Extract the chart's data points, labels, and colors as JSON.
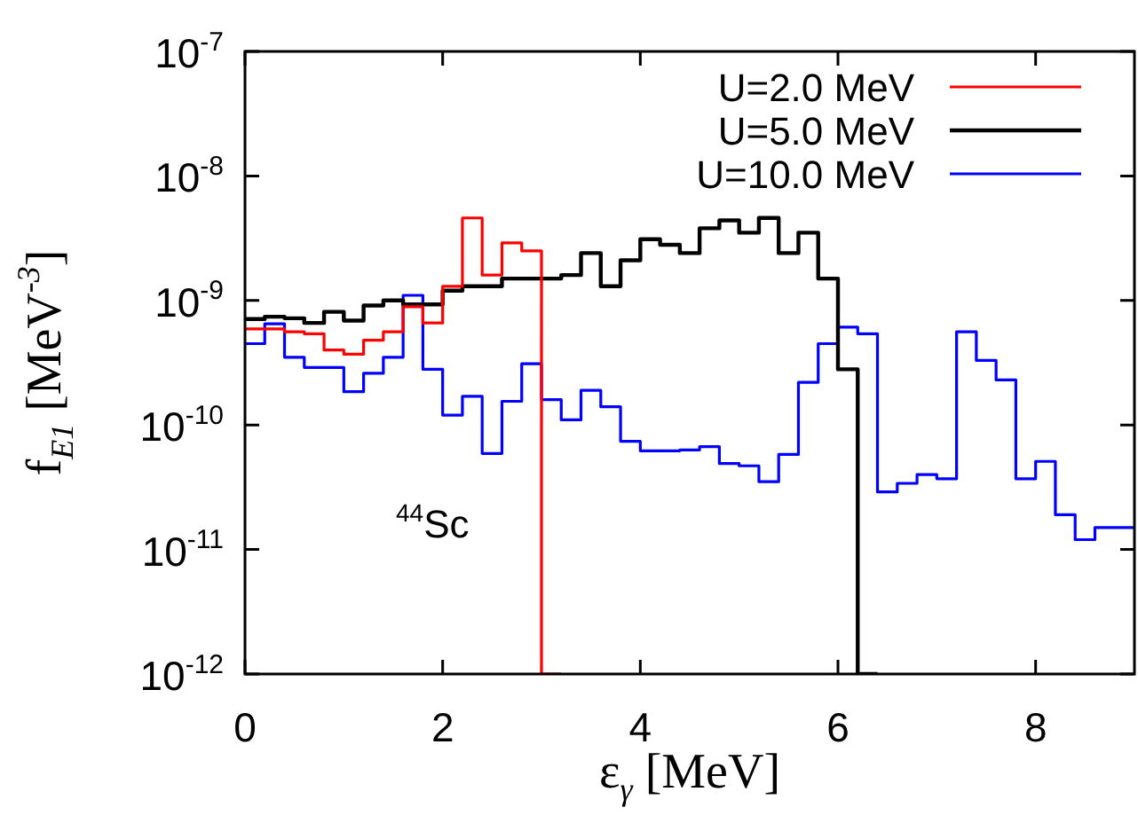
{
  "chart_data": {
    "type": "histogram",
    "xlabel": "ε$_{γ}$ [MeV]",
    "ylabel": "f$_{E1}$ [MeV$^{-3}$]",
    "annotations": [
      "$^{44}$Sc"
    ],
    "bins": [
      0,
      0.2,
      0.4,
      0.6,
      0.8,
      1,
      1.2,
      1.4,
      1.6,
      1.8,
      2,
      2.2,
      2.4,
      2.6,
      2.8,
      3,
      3.2,
      3.4,
      3.6,
      3.8,
      4,
      4.2,
      4.4,
      4.6,
      4.8,
      5,
      5.2,
      5.4,
      5.6,
      5.8,
      6,
      6.2,
      6.4,
      6.6,
      6.8,
      7,
      7.2,
      7.4,
      7.6,
      7.8,
      8,
      8.2,
      8.4,
      8.6,
      8.8,
      9
    ],
    "series": [
      {
        "name": "U=2.0 MeV",
        "color": "#ff0000",
        "bins": [
          0,
          0.2,
          0.4,
          0.6,
          0.8,
          1,
          1.2,
          1.4,
          1.6,
          1.8,
          2,
          2.2,
          2.4,
          2.6,
          2.8,
          3,
          3.2
        ],
        "values": [
          5.9e-10,
          5.9e-10,
          5.6e-10,
          5.4e-10,
          4e-10,
          3.7e-10,
          4.8e-10,
          5.6e-10,
          8.9e-10,
          6.6e-10,
          1.3e-09,
          4.6e-09,
          1.6e-09,
          2.9e-09,
          2.5e-09,
          1e-12
        ]
      },
      {
        "name": "U=5.0 MeV",
        "color": "#000000",
        "bins": [
          0,
          0.2,
          0.4,
          0.6,
          0.8,
          1,
          1.2,
          1.4,
          1.6,
          1.8,
          2,
          2.2,
          2.4,
          2.6,
          2.8,
          3,
          3.2,
          3.4,
          3.6,
          3.8,
          4,
          4.2,
          4.4,
          4.6,
          4.8,
          5,
          5.2,
          5.4,
          5.6,
          5.8,
          6,
          6.2,
          6.4
        ],
        "values": [
          7.1e-10,
          7.4e-10,
          7.2e-10,
          6.6e-10,
          8.1e-10,
          6.9e-10,
          9.1e-10,
          1e-09,
          9.3e-10,
          9.3e-10,
          1.2e-09,
          1.3e-09,
          1.3e-09,
          1.5e-09,
          1.5e-09,
          1.5e-09,
          1.6e-09,
          2.4e-09,
          1.3e-09,
          2.1e-09,
          3.1e-09,
          2.8e-09,
          2.4e-09,
          3.8e-09,
          4.4e-09,
          3.5e-09,
          4.6e-09,
          2.4e-09,
          3.5e-09,
          1.5e-09,
          2.8e-10,
          1e-12
        ]
      },
      {
        "name": "U=10.0 MeV",
        "color": "#0000ff",
        "values": [
          4.5e-10,
          6.5e-10,
          3.5e-10,
          2.9e-10,
          2.9e-10,
          1.85e-10,
          2.6e-10,
          3.5e-10,
          1.1e-09,
          2.8e-10,
          1.2e-10,
          1.7e-10,
          5.9e-11,
          1.55e-10,
          3.1e-10,
          1.6e-10,
          1.1e-10,
          1.9e-10,
          1.4e-10,
          7.4e-11,
          6.2e-11,
          6.2e-11,
          6.3e-11,
          6.7e-11,
          4.9e-11,
          4.7e-11,
          3.5e-11,
          5.8e-11,
          2.2e-10,
          4.5e-10,
          6.1e-10,
          5.4e-10,
          2.9e-11,
          3.4e-11,
          4e-11,
          3.7e-11,
          5.6e-10,
          3.3e-10,
          2.3e-10,
          3.7e-11,
          5.1e-11,
          1.9e-11,
          1.2e-11,
          1.5e-11,
          1.5e-11
        ]
      }
    ],
    "xlim": [
      0,
      9
    ],
    "xticks": [
      0,
      2,
      4,
      6,
      8
    ],
    "ylim": [
      1e-12,
      1e-07
    ],
    "yticks": [
      {
        "value": 1e-12,
        "label": "10$^{-12}$"
      },
      {
        "value": 1e-11,
        "label": "10$^{-11}$"
      },
      {
        "value": 1e-10,
        "label": "10$^{-10}$"
      },
      {
        "value": 1e-09,
        "label": "10$^{-9}$"
      },
      {
        "value": 1e-08,
        "label": "10$^{-8}$"
      },
      {
        "value": 1e-07,
        "label": "10$^{-7}$"
      }
    ],
    "log": "y",
    "legend": "top right",
    "line_style": "solid"
  }
}
